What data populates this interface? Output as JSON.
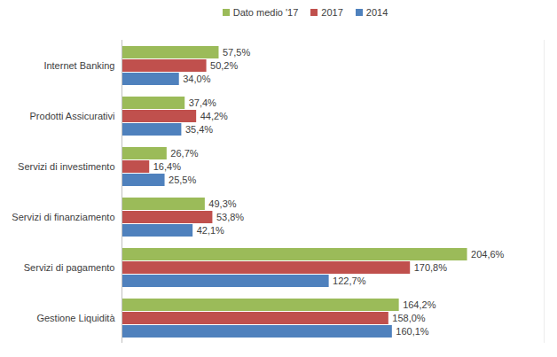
{
  "chart_data": {
    "type": "bar",
    "orientation": "horizontal",
    "categories": [
      "Internet Banking",
      "Prodotti Assicurativi",
      "Servizi di investimento",
      "Servizi di finanziamento",
      "Servizi di pagamento",
      "Gestione Liquidità"
    ],
    "series": [
      {
        "name": "Dato medio '17",
        "color": "#9bbb59",
        "values": [
          57.5,
          37.4,
          26.7,
          49.3,
          204.6,
          164.2
        ],
        "value_labels": [
          "57,5%",
          "37,4%",
          "26,7%",
          "49,3%",
          "204,6%",
          "164,2%"
        ]
      },
      {
        "name": "2017",
        "color": "#c0504d",
        "values": [
          50.2,
          44.2,
          16.4,
          53.8,
          170.8,
          158.0
        ],
        "value_labels": [
          "50,2%",
          "44,2%",
          "16,4%",
          "53,8%",
          "170,8%",
          "158,0%"
        ]
      },
      {
        "name": "2014",
        "color": "#4f81bd",
        "values": [
          34.0,
          35.4,
          25.5,
          42.1,
          122.7,
          160.1
        ],
        "value_labels": [
          "34,0%",
          "35,4%",
          "25,5%",
          "42,1%",
          "122,7%",
          "160,1%"
        ]
      }
    ],
    "xlim": [
      0,
      250
    ],
    "data_labels": true,
    "tick_labels": "y",
    "legend": "top"
  }
}
